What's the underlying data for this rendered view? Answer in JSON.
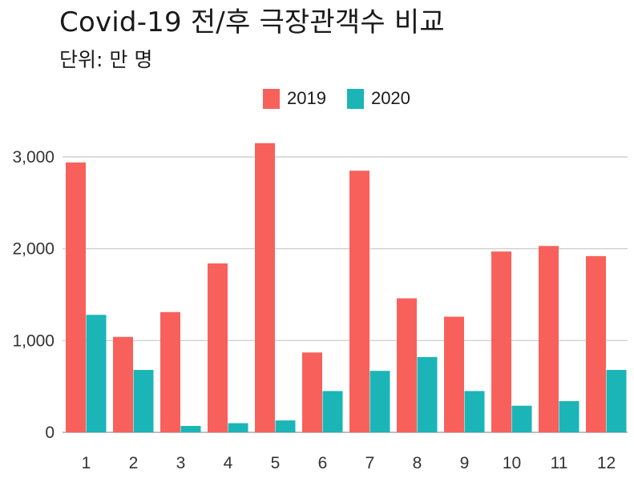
{
  "title": "Covid-19 전/후 극장관객수 비교",
  "subtitle": "단위: 만 명",
  "legend": [
    {
      "label": "2019",
      "color": "#F8615B"
    },
    {
      "label": "2020",
      "color": "#1CB5B7"
    }
  ],
  "chart_data": {
    "type": "bar",
    "title": "Covid-19 전/후 극장관객수 비교",
    "subtitle": "단위: 만 명",
    "categories": [
      "1",
      "2",
      "3",
      "4",
      "5",
      "6",
      "7",
      "8",
      "9",
      "10",
      "11",
      "12"
    ],
    "series": [
      {
        "name": "2019",
        "color": "#F8615B",
        "values": [
          2940,
          1040,
          1310,
          1840,
          3150,
          870,
          2850,
          1460,
          1260,
          1970,
          2030,
          1920
        ]
      },
      {
        "name": "2020",
        "color": "#1CB5B7",
        "values": [
          1280,
          680,
          70,
          100,
          130,
          450,
          670,
          820,
          450,
          290,
          340,
          680
        ]
      }
    ],
    "yticks": [
      "0",
      "1,000",
      "2,000",
      "3,000"
    ],
    "ytick_values": [
      0,
      1000,
      2000,
      3000
    ],
    "ylim": [
      0,
      3400
    ],
    "grid": true,
    "legend_position": "top-center"
  }
}
